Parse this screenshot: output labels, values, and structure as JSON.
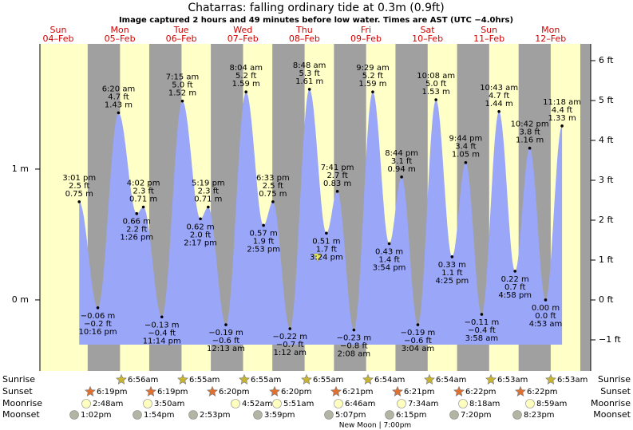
{
  "header": {
    "title": "Chatarras: falling  ordinary tide at 0.3m (0.9ft)",
    "subtitle": "Image captured 2 hours and 49 minutes before low water. Times are AST (UTC −4.0hrs)"
  },
  "chart_data": {
    "type": "tide",
    "ylim": [
      -0.543,
      1.957
    ],
    "yticks": [
      {
        "value": 0,
        "label": "0 m"
      },
      {
        "value": 1,
        "label": "1 m"
      }
    ],
    "y2lim": [
      -1.78,
      6.42
    ],
    "y2ticks": [
      {
        "value": -1,
        "label": "−1 ft"
      },
      {
        "value": 0,
        "label": "0 ft"
      },
      {
        "value": 1,
        "label": "1 ft"
      },
      {
        "value": 2,
        "label": "2 ft"
      },
      {
        "value": 3,
        "label": "3 ft"
      },
      {
        "value": 4,
        "label": "4 ft"
      },
      {
        "value": 5,
        "label": "5 ft"
      },
      {
        "value": 6,
        "label": "6 ft"
      }
    ],
    "days": [
      {
        "weekday": "Sun",
        "date": "04–Feb",
        "tides": [
          {
            "time": "3:01 pm",
            "value": 0.75,
            "m": "0.75 m",
            "ft": "2.5 ft"
          },
          {
            "time": "10:16 pm",
            "value": -0.06,
            "m": "−0.06 m",
            "ft": "−0.2 ft"
          }
        ]
      },
      {
        "weekday": "Mon",
        "date": "05–Feb",
        "tides": [
          {
            "time": "6:20 am",
            "value": 1.43,
            "m": "1.43 m",
            "ft": "4.7 ft"
          },
          {
            "time": "1:26 pm",
            "value": 0.66,
            "m": "0.66 m",
            "ft": "2.2 ft"
          },
          {
            "time": "4:02 pm",
            "value": 0.71,
            "m": "0.71 m",
            "ft": "2.3 ft"
          },
          {
            "time": "11:14 pm",
            "value": -0.13,
            "m": "−0.13 m",
            "ft": "−0.4 ft"
          }
        ]
      },
      {
        "weekday": "Tue",
        "date": "06–Feb",
        "tides": [
          {
            "time": "7:15 am",
            "value": 1.52,
            "m": "1.52 m",
            "ft": "5.0 ft"
          },
          {
            "time": "2:17 pm",
            "value": 0.62,
            "m": "0.62 m",
            "ft": "2.0 ft"
          },
          {
            "time": "5:19 pm",
            "value": 0.71,
            "m": "0.71 m",
            "ft": "2.3 ft"
          }
        ]
      },
      {
        "weekday": "Wed",
        "date": "07–Feb",
        "tides": [
          {
            "time": "12:13 am",
            "value": -0.19,
            "m": "−0.19 m",
            "ft": "−0.6 ft"
          },
          {
            "time": "8:04 am",
            "value": 1.59,
            "m": "1.59 m",
            "ft": "5.2 ft"
          },
          {
            "time": "2:53 pm",
            "value": 0.57,
            "m": "0.57 m",
            "ft": "1.9 ft"
          },
          {
            "time": "6:33 pm",
            "value": 0.75,
            "m": "0.75 m",
            "ft": "2.5 ft"
          }
        ]
      },
      {
        "weekday": "Thu",
        "date": "08–Feb",
        "tides": [
          {
            "time": "1:12 am",
            "value": -0.22,
            "m": "−0.22 m",
            "ft": "−0.7 ft"
          },
          {
            "time": "8:48 am",
            "value": 1.61,
            "m": "1.61 m",
            "ft": "5.3 ft"
          },
          {
            "time": "3:24 pm",
            "value": 0.51,
            "m": "0.51 m",
            "ft": "1.7 ft"
          },
          {
            "time": "7:41 pm",
            "value": 0.83,
            "m": "0.83 m",
            "ft": "2.7 ft"
          }
        ]
      },
      {
        "weekday": "Fri",
        "date": "09–Feb",
        "tides": [
          {
            "time": "2:08 am",
            "value": -0.23,
            "m": "−0.23 m",
            "ft": "−0.8 ft"
          },
          {
            "time": "9:29 am",
            "value": 1.59,
            "m": "1.59 m",
            "ft": "5.2 ft"
          },
          {
            "time": "3:54 pm",
            "value": 0.43,
            "m": "0.43 m",
            "ft": "1.4 ft"
          },
          {
            "time": "8:44 pm",
            "value": 0.94,
            "m": "0.94 m",
            "ft": "3.1 ft"
          }
        ]
      },
      {
        "weekday": "Sat",
        "date": "10–Feb",
        "tides": [
          {
            "time": "3:04 am",
            "value": -0.19,
            "m": "−0.19 m",
            "ft": "−0.6 ft"
          },
          {
            "time": "10:08 am",
            "value": 1.53,
            "m": "1.53 m",
            "ft": "5.0 ft"
          },
          {
            "time": "4:25 pm",
            "value": 0.33,
            "m": "0.33 m",
            "ft": "1.1 ft"
          },
          {
            "time": "9:44 pm",
            "value": 1.05,
            "m": "1.05 m",
            "ft": "3.4 ft"
          }
        ]
      },
      {
        "weekday": "Sun",
        "date": "11–Feb",
        "tides": [
          {
            "time": "3:58 am",
            "value": -0.11,
            "m": "−0.11 m",
            "ft": "−0.4 ft"
          },
          {
            "time": "10:43 am",
            "value": 1.44,
            "m": "1.44 m",
            "ft": "4.7 ft"
          },
          {
            "time": "4:58 pm",
            "value": 0.22,
            "m": "0.22 m",
            "ft": "0.7 ft"
          },
          {
            "time": "10:42 pm",
            "value": 1.16,
            "m": "1.16 m",
            "ft": "3.8 ft"
          }
        ]
      },
      {
        "weekday": "Mon",
        "date": "12–Feb",
        "tides": [
          {
            "time": "4:53 am",
            "value": 0.0,
            "m": "0.00 m",
            "ft": "0.0 ft"
          },
          {
            "time": "11:18 am",
            "value": 1.33,
            "m": "1.33 m",
            "ft": "4.4 ft"
          }
        ]
      }
    ]
  },
  "almanac": {
    "sunrise": {
      "label": "Sunrise",
      "times": [
        "6:56am",
        "6:55am",
        "6:55am",
        "6:55am",
        "6:54am",
        "6:54am",
        "6:53am",
        "6:53am"
      ]
    },
    "sunset": {
      "label": "Sunset",
      "times": [
        "6:19pm",
        "6:19pm",
        "6:20pm",
        "6:20pm",
        "6:21pm",
        "6:21pm",
        "6:22pm",
        "6:22pm"
      ]
    },
    "moonrise": {
      "label": "Moonrise",
      "times": [
        "2:48am",
        "3:50am",
        "4:52am",
        "5:51am",
        "6:46am",
        "7:34am",
        "8:18am",
        "8:59am"
      ]
    },
    "moonset": {
      "label": "Moonset",
      "times": [
        "1:02pm",
        "1:54pm",
        "2:53pm",
        "3:59pm",
        "5:07pm",
        "6:15pm",
        "7:20pm",
        "8:23pm"
      ]
    },
    "moon_phase": "New Moon | 7:00pm"
  }
}
